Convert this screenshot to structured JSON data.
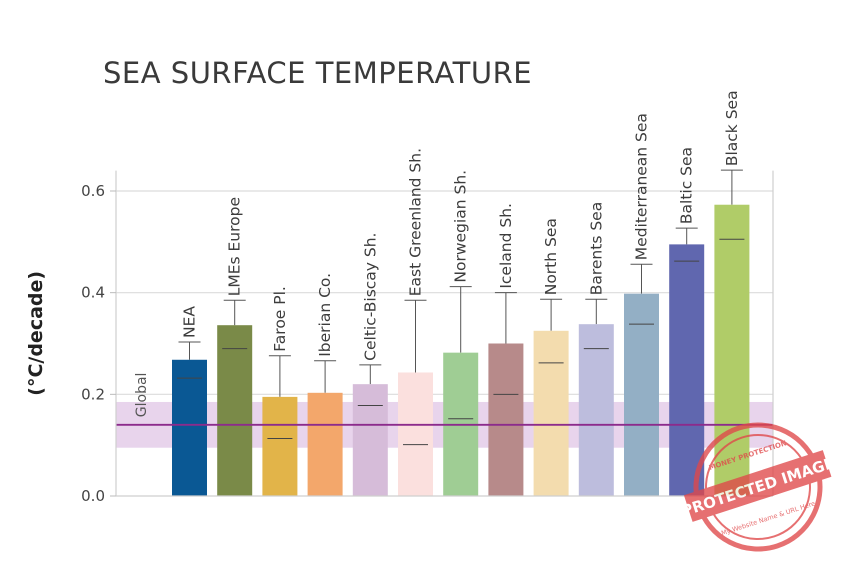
{
  "title": "SEA SURFACE TEMPERATURE",
  "chart_data": {
    "type": "bar",
    "title": "SEA SURFACE TEMPERATURE",
    "ylabel": "(°C/decade)",
    "xlabel": "",
    "ylim": [
      0,
      0.64
    ],
    "yticks": [
      "0.0",
      "0.2",
      "0.4",
      "0.6"
    ],
    "ytick_values": [
      0.0,
      0.2,
      0.4,
      0.6
    ],
    "grid": true,
    "global": {
      "label": "Global",
      "value": 0.14,
      "band_low": 0.095,
      "band_high": 0.185,
      "line_color": "#8c2b8c",
      "band_color": "#e8d4ec"
    },
    "bars": [
      {
        "label": "NEA",
        "value": 0.268,
        "median": 0.232,
        "whisker_high": 0.303,
        "color": "#0a5894"
      },
      {
        "label": "LMEs Europe",
        "value": 0.336,
        "median": 0.29,
        "whisker_high": 0.385,
        "color": "#7a8a48"
      },
      {
        "label": "Faroe Pl.",
        "value": 0.195,
        "median": 0.113,
        "whisker_high": 0.276,
        "color": "#e2b449"
      },
      {
        "label": "Iberian Co.",
        "value": 0.203,
        "median": 0.14,
        "whisker_high": 0.266,
        "color": "#f3a76b"
      },
      {
        "label": "Celtic-Biscay Sh.",
        "value": 0.22,
        "median": 0.178,
        "whisker_high": 0.258,
        "color": "#d6bcd9"
      },
      {
        "label": "East Greenland Sh.",
        "value": 0.243,
        "median": 0.101,
        "whisker_high": 0.385,
        "color": "#fbe0de"
      },
      {
        "label": "Norwegian Sh.",
        "value": 0.282,
        "median": 0.152,
        "whisker_high": 0.412,
        "color": "#9fcd94"
      },
      {
        "label": "Iceland Sh.",
        "value": 0.3,
        "median": 0.2,
        "whisker_high": 0.4,
        "color": "#b78a8a"
      },
      {
        "label": "North Sea",
        "value": 0.325,
        "median": 0.262,
        "whisker_high": 0.387,
        "color": "#f3dcae"
      },
      {
        "label": "Barents Sea",
        "value": 0.338,
        "median": 0.29,
        "whisker_high": 0.387,
        "color": "#bdbddd"
      },
      {
        "label": "Mediterranean Sea",
        "value": 0.398,
        "median": 0.338,
        "whisker_high": 0.456,
        "color": "#93afc5"
      },
      {
        "label": "Baltic Sea",
        "value": 0.495,
        "median": 0.462,
        "whisker_high": 0.527,
        "color": "#6067af"
      },
      {
        "label": "Black Sea",
        "value": 0.573,
        "median": 0.505,
        "whisker_high": 0.641,
        "color": "#b0cc68"
      }
    ]
  },
  "watermark": {
    "main": "PROTECTED IMAGE",
    "ring_top": "MONEY PROTECTION",
    "ring_bottom": "My Website Name & URL Here",
    "color": "#e0484a"
  }
}
